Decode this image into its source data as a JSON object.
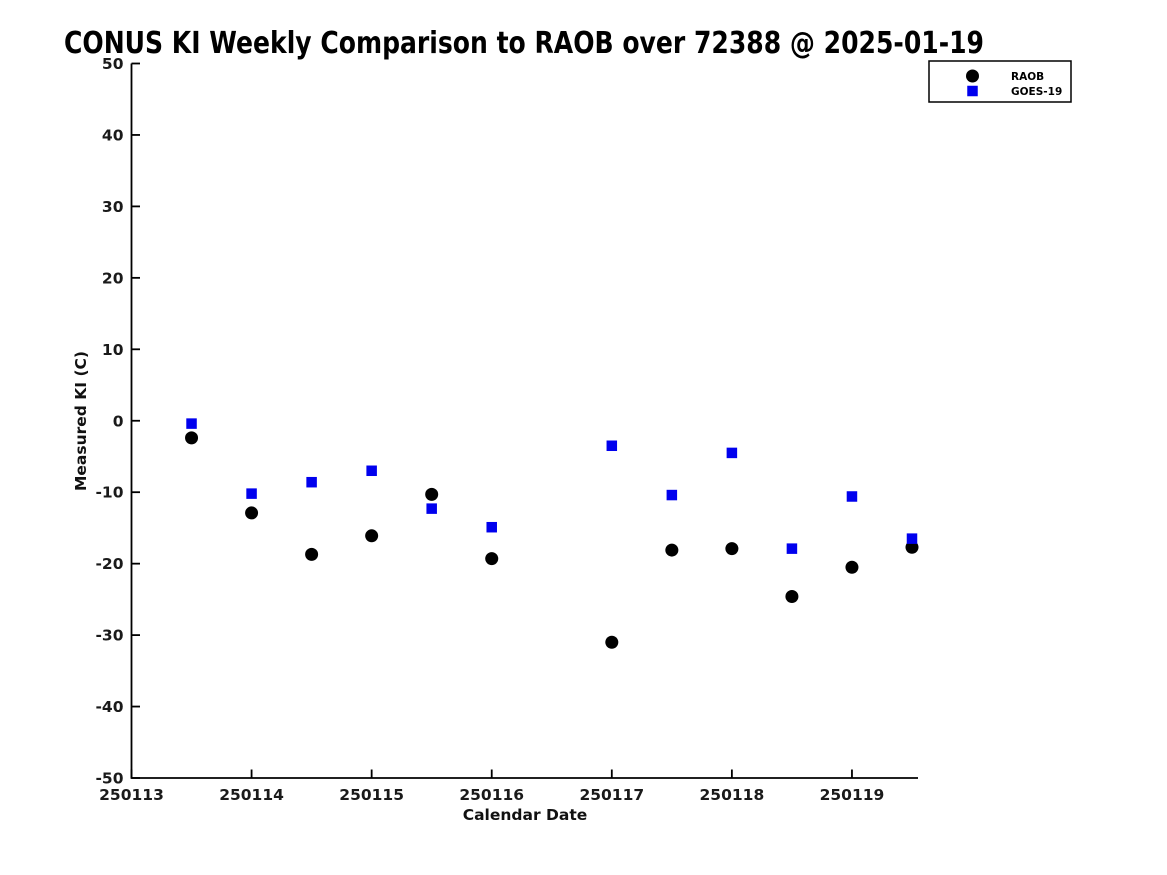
{
  "chart_data": {
    "type": "scatter",
    "title": "CONUS KI Weekly Comparison to RAOB over 72388 @ 2025-01-19",
    "xlabel": "Calendar Date",
    "ylabel": "Measured KI (C)",
    "xlim": [
      250113,
      250119.55
    ],
    "ylim": [
      -50,
      50
    ],
    "grid": false,
    "x_ticks": [
      {
        "value": 250113,
        "label": "250113"
      },
      {
        "value": 250114,
        "label": "250114"
      },
      {
        "value": 250115,
        "label": "250115"
      },
      {
        "value": 250116,
        "label": "250116"
      },
      {
        "value": 250117,
        "label": "250117"
      },
      {
        "value": 250118,
        "label": "250118"
      },
      {
        "value": 250119,
        "label": "250119"
      }
    ],
    "y_ticks": [
      {
        "value": -50,
        "label": "-50"
      },
      {
        "value": -40,
        "label": "-40"
      },
      {
        "value": -30,
        "label": "-30"
      },
      {
        "value": -20,
        "label": "-20"
      },
      {
        "value": -10,
        "label": "-10"
      },
      {
        "value": 0,
        "label": "0"
      },
      {
        "value": 10,
        "label": "10"
      },
      {
        "value": 20,
        "label": "20"
      },
      {
        "value": 30,
        "label": "30"
      },
      {
        "value": 40,
        "label": "40"
      },
      {
        "value": 50,
        "label": "50"
      }
    ],
    "x": [
      250113.5,
      250114.0,
      250114.5,
      250115.0,
      250115.5,
      250116.0,
      250117.0,
      250117.5,
      250118.0,
      250118.5,
      250119.0,
      250119.5
    ],
    "series": [
      {
        "name": "RAOB",
        "marker": "circle",
        "color": "#000000",
        "values": [
          -2.4,
          -12.9,
          -18.7,
          -16.1,
          -10.3,
          -19.3,
          -31.0,
          -18.1,
          -17.9,
          -24.6,
          -20.5,
          -17.7
        ]
      },
      {
        "name": "GOES-19",
        "marker": "square",
        "color": "#0000ee",
        "values": [
          -0.4,
          -10.2,
          -8.6,
          -7.0,
          -12.3,
          -14.9,
          -3.5,
          -10.4,
          -4.5,
          -17.9,
          -10.6,
          -16.5
        ]
      }
    ],
    "legend": {
      "position": "top-right",
      "entries": [
        {
          "name": "RAOB",
          "marker": "circle",
          "color": "#000000"
        },
        {
          "name": "GOES-19",
          "marker": "square",
          "color": "#0000ee"
        }
      ]
    },
    "axis_color": "#000000"
  }
}
